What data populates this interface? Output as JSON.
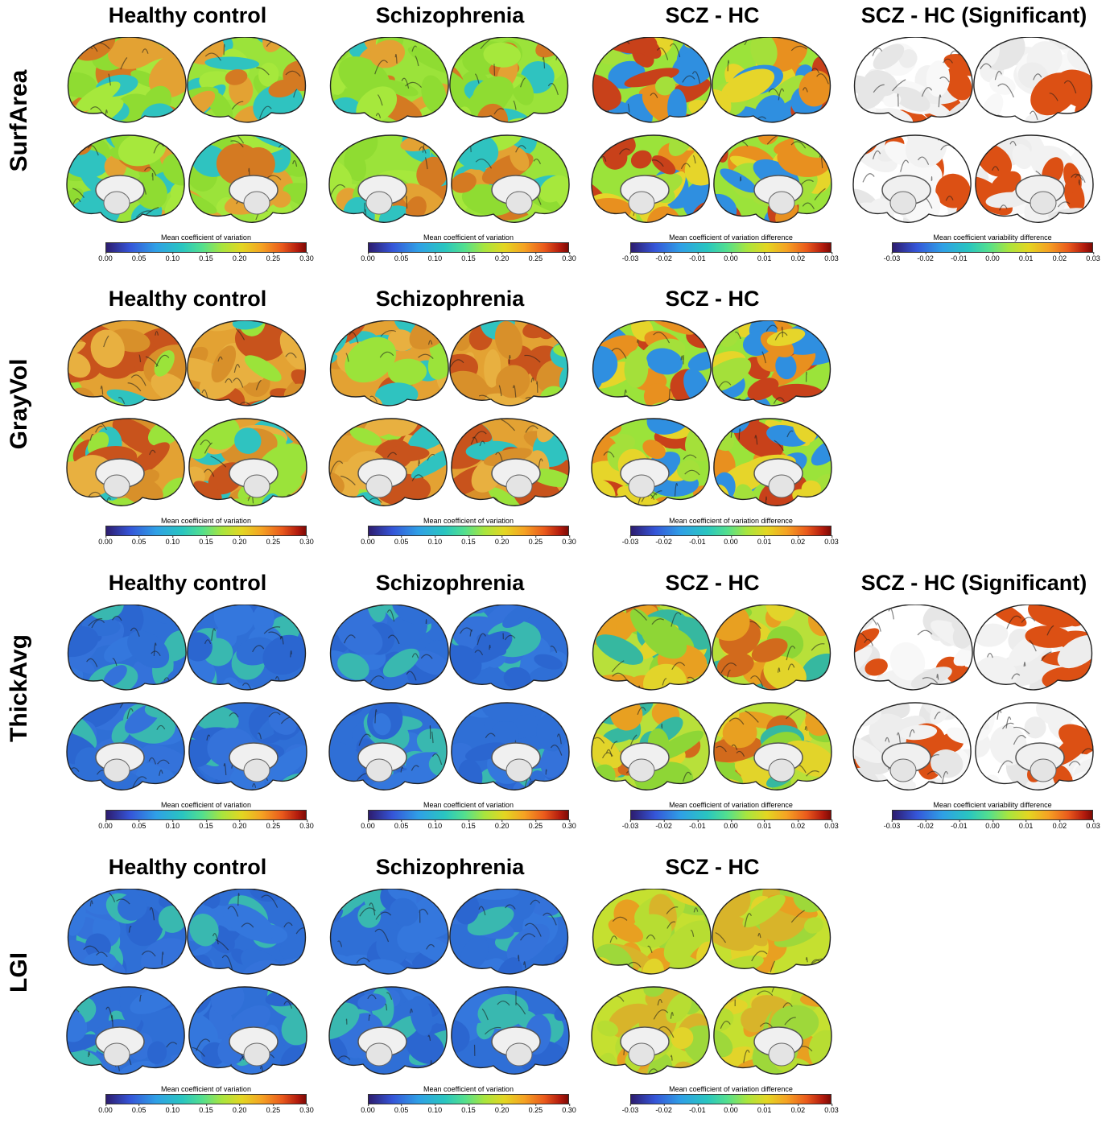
{
  "rows": [
    {
      "label": "SurfArea",
      "panels": [
        {
          "title": "Healthy control",
          "scheme": "hc",
          "colorbar": {
            "label": "Mean coefficient of variation",
            "ticks": [
              "0.00",
              "0.05",
              "0.10",
              "0.15",
              "0.20",
              "0.25",
              "0.30"
            ]
          }
        },
        {
          "title": "Schizophrenia",
          "scheme": "hc",
          "colorbar": {
            "label": "Mean coefficient of variation",
            "ticks": [
              "0.00",
              "0.05",
              "0.10",
              "0.15",
              "0.20",
              "0.25",
              "0.30"
            ]
          }
        },
        {
          "title": "SCZ - HC",
          "scheme": "diff",
          "colorbar": {
            "label": "Mean coefficient of variation difference",
            "ticks": [
              "-0.03",
              "-0.02",
              "-0.01",
              "0.00",
              "0.01",
              "0.02",
              "0.03"
            ]
          }
        },
        {
          "title": "SCZ - HC (Significant)",
          "scheme": "sig",
          "colorbar": {
            "label": "Mean coefficient variability difference",
            "ticks": [
              "-0.03",
              "-0.02",
              "-0.01",
              "0.00",
              "0.01",
              "0.02",
              "0.03"
            ]
          }
        }
      ]
    },
    {
      "label": "GrayVol",
      "panels": [
        {
          "title": "Healthy control",
          "scheme": "gv",
          "colorbar": {
            "label": "Mean coefficient of variation",
            "ticks": [
              "0.00",
              "0.05",
              "0.10",
              "0.15",
              "0.20",
              "0.25",
              "0.30"
            ]
          }
        },
        {
          "title": "Schizophrenia",
          "scheme": "gv",
          "colorbar": {
            "label": "Mean coefficient of variation",
            "ticks": [
              "0.00",
              "0.05",
              "0.10",
              "0.15",
              "0.20",
              "0.25",
              "0.30"
            ]
          }
        },
        {
          "title": "SCZ - HC",
          "scheme": "diff",
          "colorbar": {
            "label": "Mean coefficient of variation difference",
            "ticks": [
              "-0.03",
              "-0.02",
              "-0.01",
              "0.00",
              "0.01",
              "0.02",
              "0.03"
            ]
          }
        }
      ]
    },
    {
      "label": "ThickAvg",
      "panels": [
        {
          "title": "Healthy control",
          "scheme": "blue",
          "colorbar": {
            "label": "Mean coefficient of variation",
            "ticks": [
              "0.00",
              "0.05",
              "0.10",
              "0.15",
              "0.20",
              "0.25",
              "0.30"
            ]
          }
        },
        {
          "title": "Schizophrenia",
          "scheme": "blue",
          "colorbar": {
            "label": "Mean coefficient of variation",
            "ticks": [
              "0.00",
              "0.05",
              "0.10",
              "0.15",
              "0.20",
              "0.25",
              "0.30"
            ]
          }
        },
        {
          "title": "SCZ - HC",
          "scheme": "diff2",
          "colorbar": {
            "label": "Mean coefficient of variation difference",
            "ticks": [
              "-0.03",
              "-0.02",
              "-0.01",
              "0.00",
              "0.01",
              "0.02",
              "0.03"
            ]
          }
        },
        {
          "title": "SCZ - HC (Significant)",
          "scheme": "sig",
          "colorbar": {
            "label": "Mean coefficient variability difference",
            "ticks": [
              "-0.03",
              "-0.02",
              "-0.01",
              "0.00",
              "0.01",
              "0.02",
              "0.03"
            ]
          }
        }
      ]
    },
    {
      "label": "LGI",
      "panels": [
        {
          "title": "Healthy control",
          "scheme": "blue",
          "colorbar": {
            "label": "Mean coefficient of variation",
            "ticks": [
              "0.00",
              "0.05",
              "0.10",
              "0.15",
              "0.20",
              "0.25",
              "0.30"
            ]
          }
        },
        {
          "title": "Schizophrenia",
          "scheme": "blue",
          "colorbar": {
            "label": "Mean coefficient of variation",
            "ticks": [
              "0.00",
              "0.05",
              "0.10",
              "0.15",
              "0.20",
              "0.25",
              "0.30"
            ]
          }
        },
        {
          "title": "SCZ - HC",
          "scheme": "diff3",
          "colorbar": {
            "label": "Mean coefficient of variation difference",
            "ticks": [
              "-0.03",
              "-0.02",
              "-0.01",
              "0.00",
              "0.01",
              "0.02",
              "0.03"
            ]
          }
        }
      ]
    }
  ],
  "colors": {
    "hc": [
      "#9be33a",
      "#8fdc32",
      "#e3a233",
      "#d47a22",
      "#2fc3c0",
      "#a6e83c"
    ],
    "gv": [
      "#e3a233",
      "#d8902a",
      "#c8531c",
      "#9be33a",
      "#e8b040",
      "#2fc3c0"
    ],
    "blue": [
      "#2f6fd6",
      "#3472da",
      "#2b66d0",
      "#2f6fd6",
      "#39b8b0",
      "#3477dd"
    ],
    "diff": [
      "#9be33a",
      "#e8901f",
      "#c8411a",
      "#2f8fe0",
      "#e6d52a",
      "#a4e03a"
    ],
    "diff2": [
      "#b8e03a",
      "#8ed636",
      "#e8a021",
      "#d26a1c",
      "#e2d42a",
      "#36b8a0"
    ],
    "diff3": [
      "#c5e030",
      "#e2d42a",
      "#e8a021",
      "#9ed83a",
      "#d8b42a",
      "#b7dd32"
    ],
    "sig": [
      "#ffffff",
      "#f2f2f2",
      "#e6e6e6",
      "#f8f8f8",
      "#ededed",
      "#dc5014"
    ]
  }
}
